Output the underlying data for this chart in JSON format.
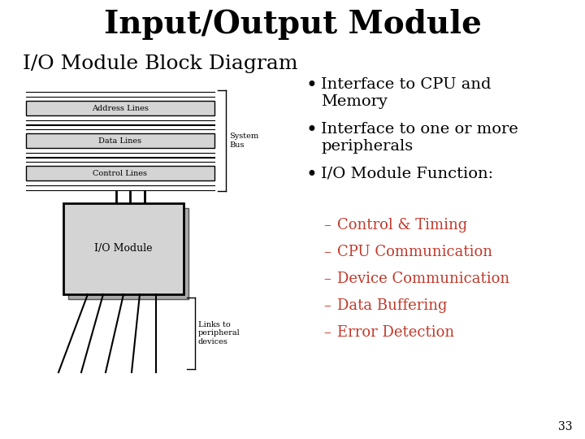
{
  "title": "Input/Output Module",
  "subtitle": "I/O Module Block Diagram",
  "background_color": "#ffffff",
  "title_fontsize": 28,
  "subtitle_fontsize": 18,
  "bullet_points": [
    "Interface to CPU and\nMemory",
    "Interface to one or more\nperipherals",
    "I/O Module Function:"
  ],
  "sub_bullets": [
    "Control & Timing",
    "CPU Communication",
    "Device Communication",
    "Data Buffering",
    "Error Detection"
  ],
  "sub_bullet_color": "#c0392b",
  "page_number": "33",
  "diagram": {
    "address_label": "Address Lines",
    "data_label": "Data Lines",
    "control_label": "Control Lines",
    "system_bus_label": "System\nBus",
    "io_module_label": "I/O Module",
    "links_label": "Links to\nperipheral\ndevices"
  }
}
